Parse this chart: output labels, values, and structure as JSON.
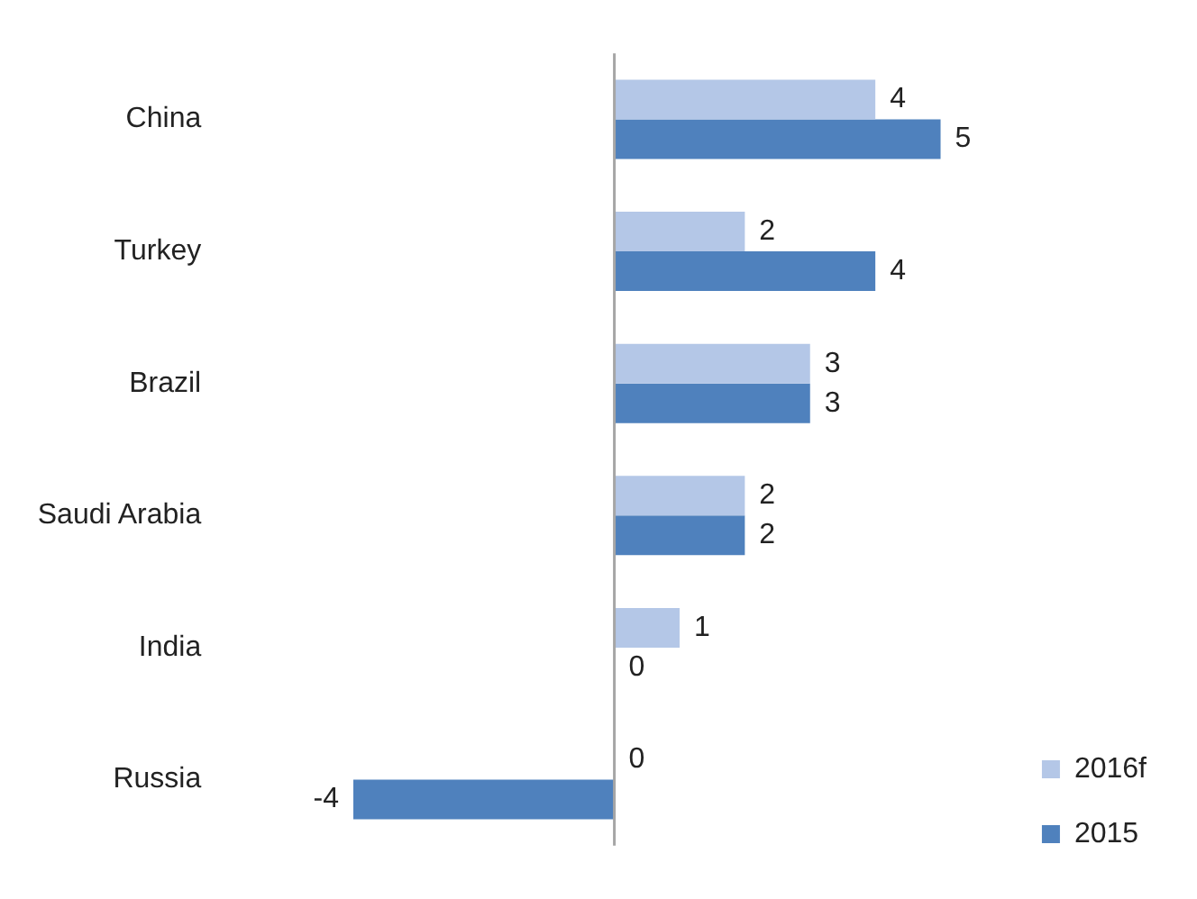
{
  "chart_data": {
    "type": "bar",
    "orientation": "horizontal",
    "categories": [
      "China",
      "Turkey",
      "Brazil",
      "Saudi Arabia",
      "India",
      "Russia"
    ],
    "series": [
      {
        "name": "2016f",
        "color": "#b4c7e7",
        "values": [
          4,
          2,
          3,
          2,
          1,
          0
        ]
      },
      {
        "name": "2015",
        "color": "#4f81bd",
        "values": [
          5,
          4,
          3,
          2,
          0,
          -4
        ]
      }
    ],
    "data_labels": true,
    "grid": false,
    "legend": "bottom right",
    "tick_labels": "y"
  }
}
